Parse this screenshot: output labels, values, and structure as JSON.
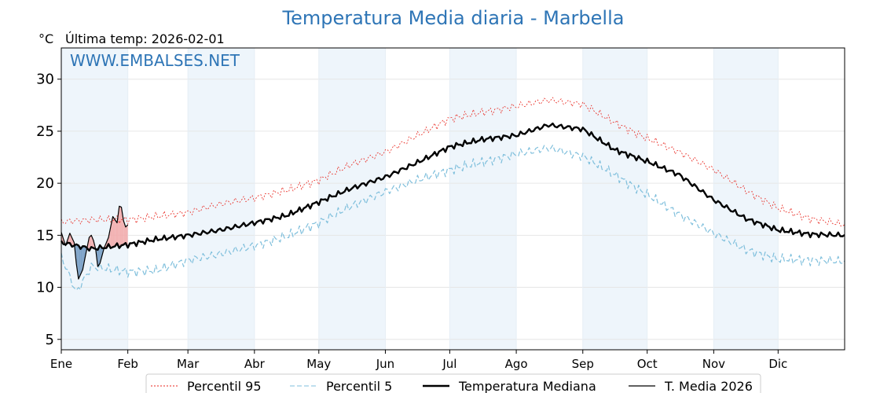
{
  "chart_data": {
    "type": "line",
    "title": "Temperatura Media diaria - Marbella",
    "unit": "°C",
    "last_update": "Última temp: 2026-02-01",
    "watermark": "WWW.EMBALSES.NET",
    "title_color": "#2e75b6",
    "ylim": [
      4,
      33
    ],
    "yticks": [
      5,
      10,
      15,
      20,
      25,
      30
    ],
    "xlim": [
      1,
      366
    ],
    "months": [
      {
        "label": "Ene",
        "day": 1
      },
      {
        "label": "Feb",
        "day": 32
      },
      {
        "label": "Mar",
        "day": 60
      },
      {
        "label": "Abr",
        "day": 91
      },
      {
        "label": "May",
        "day": 121
      },
      {
        "label": "Jun",
        "day": 152
      },
      {
        "label": "Jul",
        "day": 182
      },
      {
        "label": "Ago",
        "day": 213
      },
      {
        "label": "Sep",
        "day": 244
      },
      {
        "label": "Oct",
        "day": 274
      },
      {
        "label": "Nov",
        "day": 305
      },
      {
        "label": "Dic",
        "day": 335
      }
    ],
    "grid": true,
    "legend_position": "bottom",
    "series": [
      {
        "key": "p95",
        "name": "Percentil 95",
        "color": "#e8261e",
        "style": "dotted",
        "x": [
          1,
          15,
          32,
          45,
          60,
          75,
          91,
          106,
          121,
          136,
          152,
          167,
          182,
          197,
          213,
          228,
          244,
          259,
          274,
          289,
          305,
          320,
          335,
          350,
          366
        ],
        "y": [
          16.3,
          16.5,
          16.5,
          16.8,
          17.2,
          18.0,
          18.6,
          19.3,
          20.3,
          21.8,
          23.0,
          24.6,
          26.2,
          26.8,
          27.4,
          28.0,
          27.6,
          25.8,
          24.3,
          23.0,
          21.3,
          19.3,
          17.6,
          16.6,
          16.0
        ]
      },
      {
        "key": "p5",
        "name": "Percentil 5",
        "color": "#7fbfdc",
        "style": "dashed",
        "x": [
          1,
          8,
          15,
          32,
          45,
          60,
          75,
          91,
          106,
          121,
          136,
          152,
          167,
          182,
          197,
          213,
          228,
          244,
          259,
          274,
          289,
          305,
          320,
          335,
          350,
          366
        ],
        "y": [
          13.0,
          9.5,
          12.0,
          11.5,
          11.6,
          12.6,
          13.2,
          14.0,
          14.9,
          16.2,
          17.8,
          19.2,
          20.3,
          21.3,
          22.0,
          22.8,
          23.4,
          22.6,
          20.8,
          18.9,
          17.0,
          15.2,
          13.6,
          12.7,
          12.6,
          12.5
        ]
      },
      {
        "key": "median",
        "name": "Temperatura Mediana",
        "color": "#000000",
        "style": "solid",
        "x": [
          1,
          15,
          32,
          45,
          60,
          75,
          91,
          106,
          121,
          136,
          152,
          167,
          182,
          197,
          213,
          228,
          244,
          259,
          274,
          289,
          305,
          320,
          335,
          350,
          366
        ],
        "y": [
          14.3,
          13.7,
          14.1,
          14.6,
          15.0,
          15.5,
          16.2,
          16.9,
          18.2,
          19.5,
          20.6,
          22.0,
          23.5,
          24.2,
          24.6,
          25.6,
          25.2,
          23.2,
          22.1,
          20.8,
          18.4,
          16.6,
          15.5,
          15.1,
          15.0
        ]
      },
      {
        "key": "actual",
        "name": "T. Media 2026",
        "color": "#000000",
        "style": "solid",
        "x": [
          1,
          3,
          5,
          7,
          8,
          9,
          11,
          13,
          14,
          15,
          16,
          17,
          18,
          19,
          21,
          23,
          25,
          27,
          28,
          29,
          30,
          31,
          32
        ],
        "y": [
          15.3,
          14.0,
          15.2,
          14.3,
          12.3,
          10.8,
          11.7,
          13.8,
          14.8,
          15.0,
          14.5,
          13.7,
          12.0,
          12.3,
          13.8,
          14.8,
          16.8,
          16.2,
          17.8,
          17.7,
          16.4,
          15.8,
          16.0
        ]
      }
    ]
  }
}
